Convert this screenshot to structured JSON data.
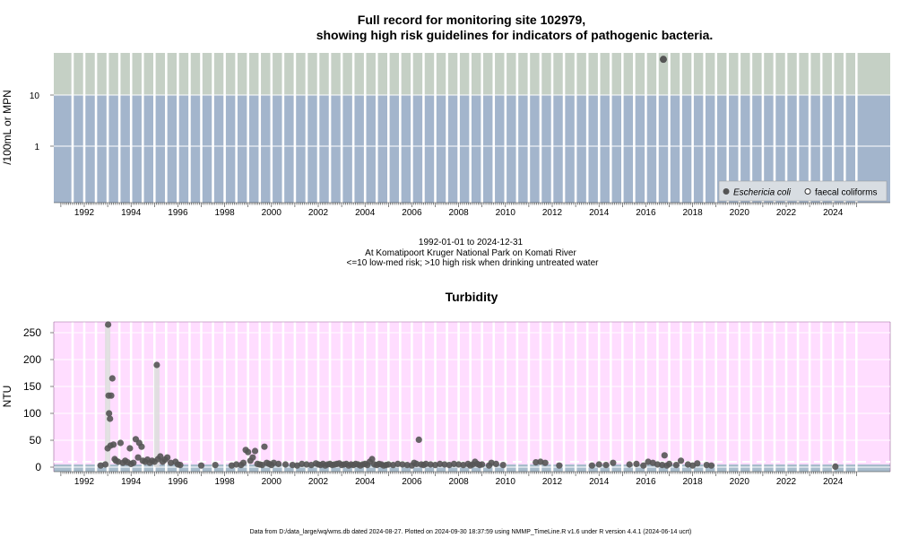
{
  "header": {
    "title_line1": "Full record for monitoring site 102979,",
    "title_line2": "showing high risk guidelines for indicators of pathogenic bacteria."
  },
  "bacteria_panel": {
    "ylabel": "/100mL or MPN",
    "yticks": [
      "10",
      "1"
    ],
    "legend": [
      "Eschericia coli",
      "faecal coliforms"
    ]
  },
  "info": {
    "date_range": "1992-01-01 to 2024-12-31",
    "location": "At Komatipoort Kruger National Park on Komati River",
    "risk": "<=10 low-med risk; >10 high risk when drinking untreated water"
  },
  "turbidity_panel": {
    "title": "Turbidity",
    "ylabel": "NTU",
    "yticks": [
      "0",
      "50",
      "100",
      "150",
      "200",
      "250"
    ]
  },
  "xticks": [
    "1992",
    "1994",
    "1996",
    "1998",
    "2000",
    "2002",
    "2004",
    "2006",
    "2008",
    "2010",
    "2012",
    "2014",
    "2016",
    "2018",
    "2020",
    "2022",
    "2024"
  ],
  "footer": "Data from D:/data_large/wq/wms.db dated 2024-08-27. Plotted on 2024-09-30 18:37:59 using NMMP_TimeLine.R v1.6 under R version 4.4.1 (2024-06-14 ucrt)",
  "colors": {
    "low_risk_band": "#a3b5cc",
    "high_risk_band": "#c5d0c5",
    "turbidity_bg": "#ffddff",
    "turbidity_low_band": "#a8bccc",
    "points": "#555555"
  },
  "chart_data": [
    {
      "type": "scatter",
      "name": "bacteria",
      "y_scale": "log",
      "guideline": 10,
      "xlim": [
        1991.0,
        2025.1
      ],
      "series": [
        {
          "name": "Eschericia coli",
          "points": [
            {
              "x": 2016.75,
              "y": 50
            }
          ]
        },
        {
          "name": "faecal coliforms",
          "points": []
        }
      ]
    },
    {
      "type": "scatter",
      "name": "turbidity",
      "title": "Turbidity",
      "ylabel": "NTU",
      "ylim": [
        -10,
        275
      ],
      "xlim": [
        1991.0,
        2025.1
      ],
      "guideline": 5,
      "spikes": [
        {
          "x": 1993.0,
          "y": 265
        },
        {
          "x": 1995.1,
          "y": 190
        }
      ],
      "points": [
        {
          "x": 1992.7,
          "y": 3
        },
        {
          "x": 1992.9,
          "y": 5
        },
        {
          "x": 1993.0,
          "y": 35
        },
        {
          "x": 1993.02,
          "y": 265
        },
        {
          "x": 1993.04,
          "y": 133
        },
        {
          "x": 1993.06,
          "y": 100
        },
        {
          "x": 1993.1,
          "y": 90
        },
        {
          "x": 1993.15,
          "y": 133
        },
        {
          "x": 1993.2,
          "y": 165
        },
        {
          "x": 1993.12,
          "y": 40
        },
        {
          "x": 1993.25,
          "y": 42
        },
        {
          "x": 1993.3,
          "y": 15
        },
        {
          "x": 1993.35,
          "y": 12
        },
        {
          "x": 1993.45,
          "y": 10
        },
        {
          "x": 1993.55,
          "y": 45
        },
        {
          "x": 1993.65,
          "y": 8
        },
        {
          "x": 1993.75,
          "y": 12
        },
        {
          "x": 1993.85,
          "y": 9
        },
        {
          "x": 1993.95,
          "y": 35
        },
        {
          "x": 1994.0,
          "y": 6
        },
        {
          "x": 1994.1,
          "y": 8
        },
        {
          "x": 1994.2,
          "y": 52
        },
        {
          "x": 1994.3,
          "y": 18
        },
        {
          "x": 1994.35,
          "y": 45
        },
        {
          "x": 1994.45,
          "y": 38
        },
        {
          "x": 1994.5,
          "y": 12
        },
        {
          "x": 1994.6,
          "y": 10
        },
        {
          "x": 1994.7,
          "y": 14
        },
        {
          "x": 1994.8,
          "y": 8
        },
        {
          "x": 1994.9,
          "y": 12
        },
        {
          "x": 1995.0,
          "y": 10
        },
        {
          "x": 1995.1,
          "y": 190
        },
        {
          "x": 1995.15,
          "y": 15
        },
        {
          "x": 1995.25,
          "y": 20
        },
        {
          "x": 1995.35,
          "y": 10
        },
        {
          "x": 1995.45,
          "y": 14
        },
        {
          "x": 1995.55,
          "y": 18
        },
        {
          "x": 1995.7,
          "y": 8
        },
        {
          "x": 1995.9,
          "y": 10
        },
        {
          "x": 1996.0,
          "y": 5
        },
        {
          "x": 1996.1,
          "y": 4
        },
        {
          "x": 1997.0,
          "y": 3
        },
        {
          "x": 1997.6,
          "y": 4
        },
        {
          "x": 1998.3,
          "y": 3
        },
        {
          "x": 1998.5,
          "y": 5
        },
        {
          "x": 1998.7,
          "y": 4
        },
        {
          "x": 1998.8,
          "y": 8
        },
        {
          "x": 1998.9,
          "y": 32
        },
        {
          "x": 1999.0,
          "y": 28
        },
        {
          "x": 1999.1,
          "y": 12
        },
        {
          "x": 1999.2,
          "y": 18
        },
        {
          "x": 1999.3,
          "y": 30
        },
        {
          "x": 1999.4,
          "y": 6
        },
        {
          "x": 1999.5,
          "y": 5
        },
        {
          "x": 1999.6,
          "y": 4
        },
        {
          "x": 1999.7,
          "y": 38
        },
        {
          "x": 1999.8,
          "y": 8
        },
        {
          "x": 1999.9,
          "y": 6
        },
        {
          "x": 2000.0,
          "y": 4
        },
        {
          "x": 2000.1,
          "y": 8
        },
        {
          "x": 2000.3,
          "y": 6
        },
        {
          "x": 2000.6,
          "y": 5
        },
        {
          "x": 2000.9,
          "y": 4
        },
        {
          "x": 2001.1,
          "y": 3
        },
        {
          "x": 2001.3,
          "y": 6
        },
        {
          "x": 2001.5,
          "y": 5
        },
        {
          "x": 2001.7,
          "y": 4
        },
        {
          "x": 2001.9,
          "y": 7
        },
        {
          "x": 2002.0,
          "y": 5
        },
        {
          "x": 2002.1,
          "y": 4
        },
        {
          "x": 2002.2,
          "y": 6
        },
        {
          "x": 2002.3,
          "y": 3
        },
        {
          "x": 2002.4,
          "y": 5
        },
        {
          "x": 2002.5,
          "y": 6
        },
        {
          "x": 2002.6,
          "y": 4
        },
        {
          "x": 2002.7,
          "y": 5
        },
        {
          "x": 2002.8,
          "y": 6
        },
        {
          "x": 2002.9,
          "y": 7
        },
        {
          "x": 2003.0,
          "y": 4
        },
        {
          "x": 2003.1,
          "y": 5
        },
        {
          "x": 2003.2,
          "y": 6
        },
        {
          "x": 2003.3,
          "y": 3
        },
        {
          "x": 2003.4,
          "y": 5
        },
        {
          "x": 2003.5,
          "y": 4
        },
        {
          "x": 2003.6,
          "y": 6
        },
        {
          "x": 2003.7,
          "y": 5
        },
        {
          "x": 2003.8,
          "y": 3
        },
        {
          "x": 2003.9,
          "y": 5
        },
        {
          "x": 2004.0,
          "y": 6
        },
        {
          "x": 2004.1,
          "y": 4
        },
        {
          "x": 2004.2,
          "y": 10
        },
        {
          "x": 2004.3,
          "y": 15
        },
        {
          "x": 2004.4,
          "y": 5
        },
        {
          "x": 2004.5,
          "y": 4
        },
        {
          "x": 2004.6,
          "y": 6
        },
        {
          "x": 2004.7,
          "y": 5
        },
        {
          "x": 2004.8,
          "y": 3
        },
        {
          "x": 2004.9,
          "y": 4
        },
        {
          "x": 2005.0,
          "y": 5
        },
        {
          "x": 2005.2,
          "y": 4
        },
        {
          "x": 2005.4,
          "y": 6
        },
        {
          "x": 2005.6,
          "y": 5
        },
        {
          "x": 2005.8,
          "y": 4
        },
        {
          "x": 2006.0,
          "y": 3
        },
        {
          "x": 2006.1,
          "y": 8
        },
        {
          "x": 2006.2,
          "y": 6
        },
        {
          "x": 2006.3,
          "y": 51
        },
        {
          "x": 2006.4,
          "y": 5
        },
        {
          "x": 2006.5,
          "y": 4
        },
        {
          "x": 2006.6,
          "y": 6
        },
        {
          "x": 2006.8,
          "y": 5
        },
        {
          "x": 2007.0,
          "y": 4
        },
        {
          "x": 2007.2,
          "y": 6
        },
        {
          "x": 2007.4,
          "y": 5
        },
        {
          "x": 2007.6,
          "y": 4
        },
        {
          "x": 2007.8,
          "y": 6
        },
        {
          "x": 2008.0,
          "y": 5
        },
        {
          "x": 2008.2,
          "y": 4
        },
        {
          "x": 2008.4,
          "y": 6
        },
        {
          "x": 2008.5,
          "y": 3
        },
        {
          "x": 2008.6,
          "y": 5
        },
        {
          "x": 2008.7,
          "y": 10
        },
        {
          "x": 2008.8,
          "y": 6
        },
        {
          "x": 2008.9,
          "y": 4
        },
        {
          "x": 2009.0,
          "y": 5
        },
        {
          "x": 2009.3,
          "y": 3
        },
        {
          "x": 2009.4,
          "y": 8
        },
        {
          "x": 2009.6,
          "y": 6
        },
        {
          "x": 2009.9,
          "y": 4
        },
        {
          "x": 2011.3,
          "y": 9
        },
        {
          "x": 2011.5,
          "y": 10
        },
        {
          "x": 2011.7,
          "y": 8
        },
        {
          "x": 2012.3,
          "y": 3
        },
        {
          "x": 2013.7,
          "y": 3
        },
        {
          "x": 2014.0,
          "y": 5
        },
        {
          "x": 2014.3,
          "y": 4
        },
        {
          "x": 2014.6,
          "y": 8
        },
        {
          "x": 2015.3,
          "y": 5
        },
        {
          "x": 2015.6,
          "y": 6
        },
        {
          "x": 2015.9,
          "y": 3
        },
        {
          "x": 2016.1,
          "y": 10
        },
        {
          "x": 2016.3,
          "y": 8
        },
        {
          "x": 2016.5,
          "y": 5
        },
        {
          "x": 2016.7,
          "y": 4
        },
        {
          "x": 2016.8,
          "y": 22
        },
        {
          "x": 2016.9,
          "y": 3
        },
        {
          "x": 2017.0,
          "y": 6
        },
        {
          "x": 2017.3,
          "y": 4
        },
        {
          "x": 2017.5,
          "y": 12
        },
        {
          "x": 2017.8,
          "y": 5
        },
        {
          "x": 2018.0,
          "y": 3
        },
        {
          "x": 2018.2,
          "y": 7
        },
        {
          "x": 2018.6,
          "y": 4
        },
        {
          "x": 2018.8,
          "y": 3
        },
        {
          "x": 2024.1,
          "y": 1
        }
      ]
    }
  ]
}
